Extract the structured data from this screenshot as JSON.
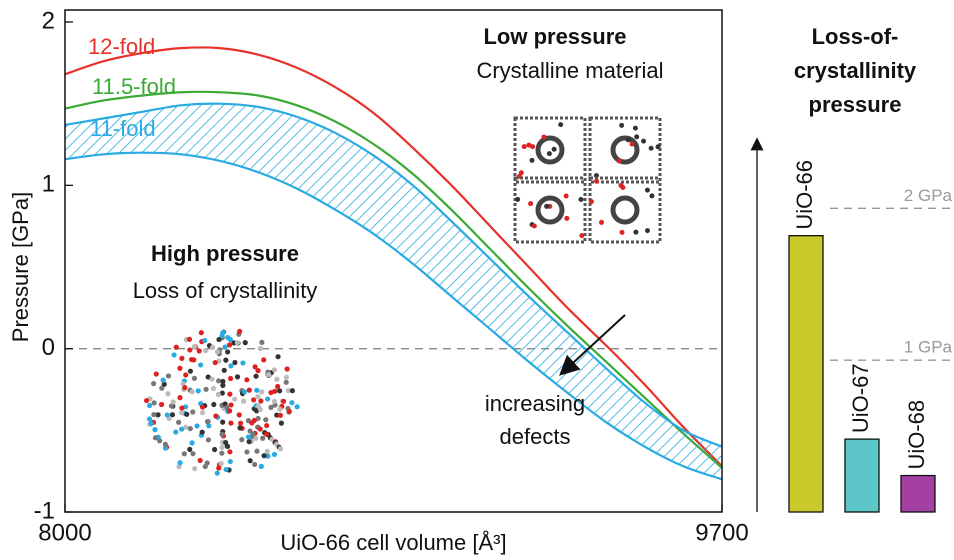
{
  "chart_data": [
    {
      "type": "line",
      "x_label": "UiO-66 cell volume [Å³]",
      "y_label": "Pressure [GPa]",
      "x": [
        8000,
        8100,
        8200,
        8300,
        8400,
        8500,
        8600,
        8700,
        8800,
        8900,
        9000,
        9100,
        9200,
        9300,
        9400,
        9500,
        9600,
        9700
      ],
      "series": [
        {
          "name": "12-fold",
          "color": "#e8312a",
          "values": [
            1.68,
            1.76,
            1.81,
            1.84,
            1.84,
            1.8,
            1.72,
            1.6,
            1.44,
            1.23,
            1.0,
            0.75,
            0.5,
            0.25,
            0.02,
            -0.22,
            -0.48,
            -0.72
          ]
        },
        {
          "name": "11.5-fold",
          "color": "#3aaa35",
          "values": [
            1.47,
            1.52,
            1.55,
            1.57,
            1.57,
            1.55,
            1.49,
            1.39,
            1.25,
            1.07,
            0.85,
            0.61,
            0.37,
            0.14,
            -0.08,
            -0.3,
            -0.52,
            -0.73
          ]
        },
        {
          "name": "11-fold",
          "color": "#29abe2",
          "hatched": true,
          "upper": [
            1.37,
            1.41,
            1.45,
            1.49,
            1.5,
            1.48,
            1.42,
            1.32,
            1.18,
            1.0,
            0.78,
            0.55,
            0.32,
            0.1,
            -0.12,
            -0.33,
            -0.5,
            -0.6
          ],
          "lower": [
            1.16,
            1.19,
            1.2,
            1.19,
            1.15,
            1.08,
            0.98,
            0.85,
            0.7,
            0.52,
            0.32,
            0.12,
            -0.08,
            -0.27,
            -0.45,
            -0.6,
            -0.72,
            -0.8
          ]
        }
      ],
      "xlim": [
        8000,
        9700
      ],
      "xticks": [
        8000,
        9700
      ],
      "ylim": [
        -1,
        2
      ],
      "yticks": [
        -1,
        0,
        1,
        2
      ],
      "dashed_zero": true,
      "annotations": [
        "Low pressure",
        "Crystalline material",
        "High pressure",
        "Loss of crystallinity",
        "increasing",
        "defects"
      ]
    },
    {
      "type": "bar",
      "title": [
        "Loss-of-",
        "crystallinity",
        "pressure"
      ],
      "categories": [
        "UiO-66",
        "UiO-67",
        "UiO-68"
      ],
      "values": [
        1.82,
        0.48,
        0.24
      ],
      "colors": [
        "#c9c92c",
        "#5cc6c9",
        "#a43fa4"
      ],
      "ylim": [
        0,
        2.45
      ],
      "yticks": [
        {
          "value": 1,
          "label": "1 GPa"
        },
        {
          "value": 2,
          "label": "2 GPa"
        }
      ],
      "grid": true
    }
  ]
}
